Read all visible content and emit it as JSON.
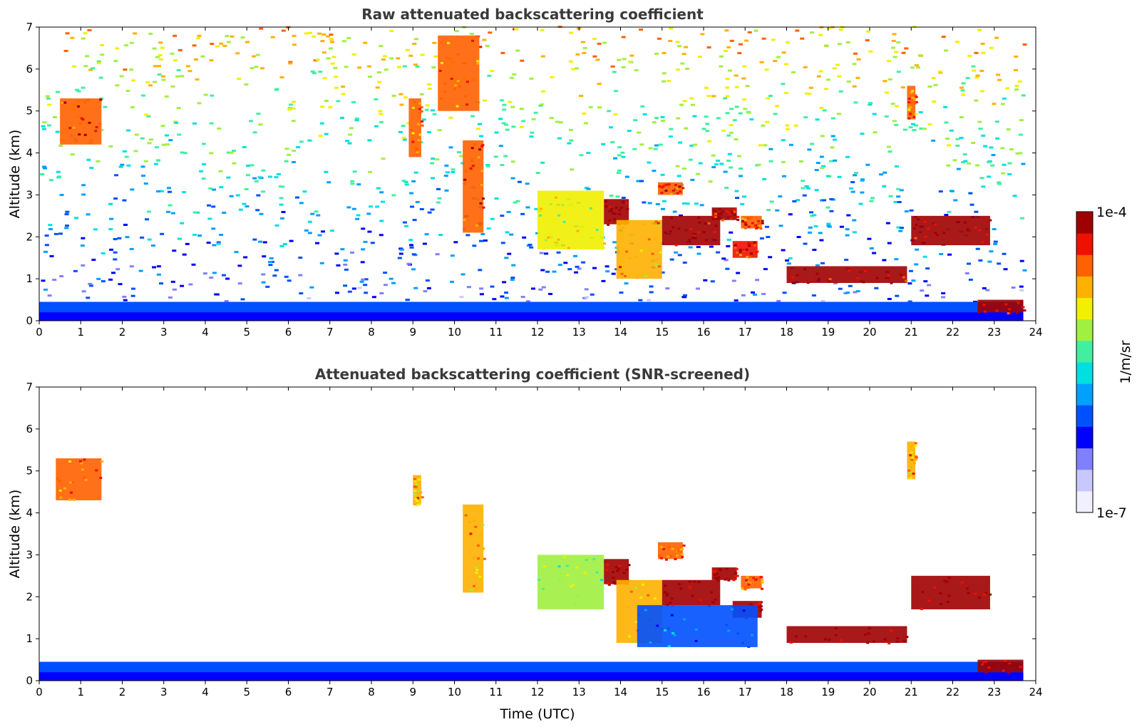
{
  "chart_data": [
    {
      "type": "heatmap",
      "title": "Raw attenuated backscattering coefficient",
      "xlabel": "",
      "ylabel": "Altitude (km)",
      "xlim": [
        0,
        24
      ],
      "ylim": [
        0,
        7
      ],
      "xticks": [
        "0",
        "1",
        "2",
        "3",
        "4",
        "5",
        "6",
        "7",
        "8",
        "9",
        "10",
        "11",
        "12",
        "13",
        "14",
        "15",
        "16",
        "17",
        "18",
        "19",
        "20",
        "21",
        "22",
        "23",
        "24"
      ],
      "yticks": [
        "0",
        "1",
        "2",
        "3",
        "4",
        "5",
        "6",
        "7"
      ],
      "background_noise": true,
      "features": [
        {
          "t0": 0.5,
          "t1": 1.5,
          "z0": 4.2,
          "z1": 5.3,
          "level": 0.85
        },
        {
          "t0": 8.9,
          "t1": 9.2,
          "z0": 3.9,
          "z1": 5.3,
          "level": 0.8
        },
        {
          "t0": 10.2,
          "t1": 10.7,
          "z0": 2.1,
          "z1": 4.3,
          "level": 0.85
        },
        {
          "t0": 9.6,
          "t1": 10.6,
          "z0": 5.0,
          "z1": 6.8,
          "level": 0.8
        },
        {
          "t0": 12.0,
          "t1": 13.6,
          "z0": 1.7,
          "z1": 3.1,
          "level": 0.65
        },
        {
          "t0": 13.6,
          "t1": 14.2,
          "z0": 2.3,
          "z1": 2.9,
          "level": 0.95
        },
        {
          "t0": 13.9,
          "t1": 15.0,
          "z0": 1.0,
          "z1": 2.4,
          "level": 0.75
        },
        {
          "t0": 14.9,
          "t1": 15.5,
          "z0": 3.0,
          "z1": 3.3,
          "level": 0.85
        },
        {
          "t0": 15.0,
          "t1": 16.4,
          "z0": 1.8,
          "z1": 2.5,
          "level": 0.97
        },
        {
          "t0": 16.2,
          "t1": 16.8,
          "z0": 2.4,
          "z1": 2.7,
          "level": 0.95
        },
        {
          "t0": 16.9,
          "t1": 17.4,
          "z0": 2.2,
          "z1": 2.5,
          "level": 0.85
        },
        {
          "t0": 16.7,
          "t1": 17.3,
          "z0": 1.5,
          "z1": 1.9,
          "level": 0.9
        },
        {
          "t0": 18.0,
          "t1": 20.9,
          "z0": 0.9,
          "z1": 1.3,
          "level": 0.95
        },
        {
          "t0": 21.0,
          "t1": 22.9,
          "z0": 1.8,
          "z1": 2.5,
          "level": 0.97
        },
        {
          "t0": 22.6,
          "t1": 23.7,
          "z0": 0.2,
          "z1": 0.5,
          "level": 0.97
        },
        {
          "t0": 20.9,
          "t1": 21.1,
          "z0": 4.8,
          "z1": 5.6,
          "level": 0.8
        }
      ]
    },
    {
      "type": "heatmap",
      "title": "Attenuated backscattering coefficient (SNR-screened)",
      "xlabel": "Time (UTC)",
      "ylabel": "Altitude (km)",
      "xlim": [
        0,
        24
      ],
      "ylim": [
        0,
        7
      ],
      "xticks": [
        "0",
        "1",
        "2",
        "3",
        "4",
        "5",
        "6",
        "7",
        "8",
        "9",
        "10",
        "11",
        "12",
        "13",
        "14",
        "15",
        "16",
        "17",
        "18",
        "19",
        "20",
        "21",
        "22",
        "23",
        "24"
      ],
      "yticks": [
        "0",
        "1",
        "2",
        "3",
        "4",
        "5",
        "6",
        "7"
      ],
      "background_noise": false,
      "features": [
        {
          "t0": 0.4,
          "t1": 1.5,
          "z0": 4.3,
          "z1": 5.3,
          "level": 0.8
        },
        {
          "t0": 9.0,
          "t1": 9.2,
          "z0": 4.2,
          "z1": 4.9,
          "level": 0.75
        },
        {
          "t0": 10.2,
          "t1": 10.7,
          "z0": 2.1,
          "z1": 4.2,
          "level": 0.75
        },
        {
          "t0": 12.0,
          "t1": 13.6,
          "z0": 1.7,
          "z1": 3.0,
          "level": 0.6
        },
        {
          "t0": 13.6,
          "t1": 14.2,
          "z0": 2.3,
          "z1": 2.9,
          "level": 1.0
        },
        {
          "t0": 13.9,
          "t1": 15.0,
          "z0": 0.9,
          "z1": 2.4,
          "level": 0.72
        },
        {
          "t0": 14.9,
          "t1": 15.5,
          "z0": 2.9,
          "z1": 3.3,
          "level": 0.8
        },
        {
          "t0": 15.0,
          "t1": 16.4,
          "z0": 1.8,
          "z1": 2.4,
          "level": 1.0
        },
        {
          "t0": 16.2,
          "t1": 16.8,
          "z0": 2.4,
          "z1": 2.7,
          "level": 1.0
        },
        {
          "t0": 16.9,
          "t1": 17.4,
          "z0": 2.2,
          "z1": 2.5,
          "level": 0.8
        },
        {
          "t0": 16.7,
          "t1": 17.4,
          "z0": 1.5,
          "z1": 1.9,
          "level": 1.0
        },
        {
          "t0": 18.0,
          "t1": 20.9,
          "z0": 0.9,
          "z1": 1.3,
          "level": 1.0
        },
        {
          "t0": 21.0,
          "t1": 22.9,
          "z0": 1.7,
          "z1": 2.5,
          "level": 1.0
        },
        {
          "t0": 22.6,
          "t1": 23.7,
          "z0": 0.2,
          "z1": 0.5,
          "level": 1.0
        },
        {
          "t0": 20.9,
          "t1": 21.1,
          "z0": 4.8,
          "z1": 5.7,
          "level": 0.75
        },
        {
          "t0": 14.4,
          "t1": 17.3,
          "z0": 0.8,
          "z1": 1.8,
          "level": 0.35
        }
      ]
    }
  ],
  "colorbar": {
    "label": "1/m/sr",
    "max_label": "1e-4",
    "min_label": "1e-7",
    "colors": [
      "#f0f0ff",
      "#c8c8ff",
      "#8080ff",
      "#0000ff",
      "#0050ff",
      "#00a0ff",
      "#00e0e0",
      "#40f0a0",
      "#a0f040",
      "#f0f000",
      "#ffb000",
      "#ff6000",
      "#f01000",
      "#a00000"
    ]
  }
}
